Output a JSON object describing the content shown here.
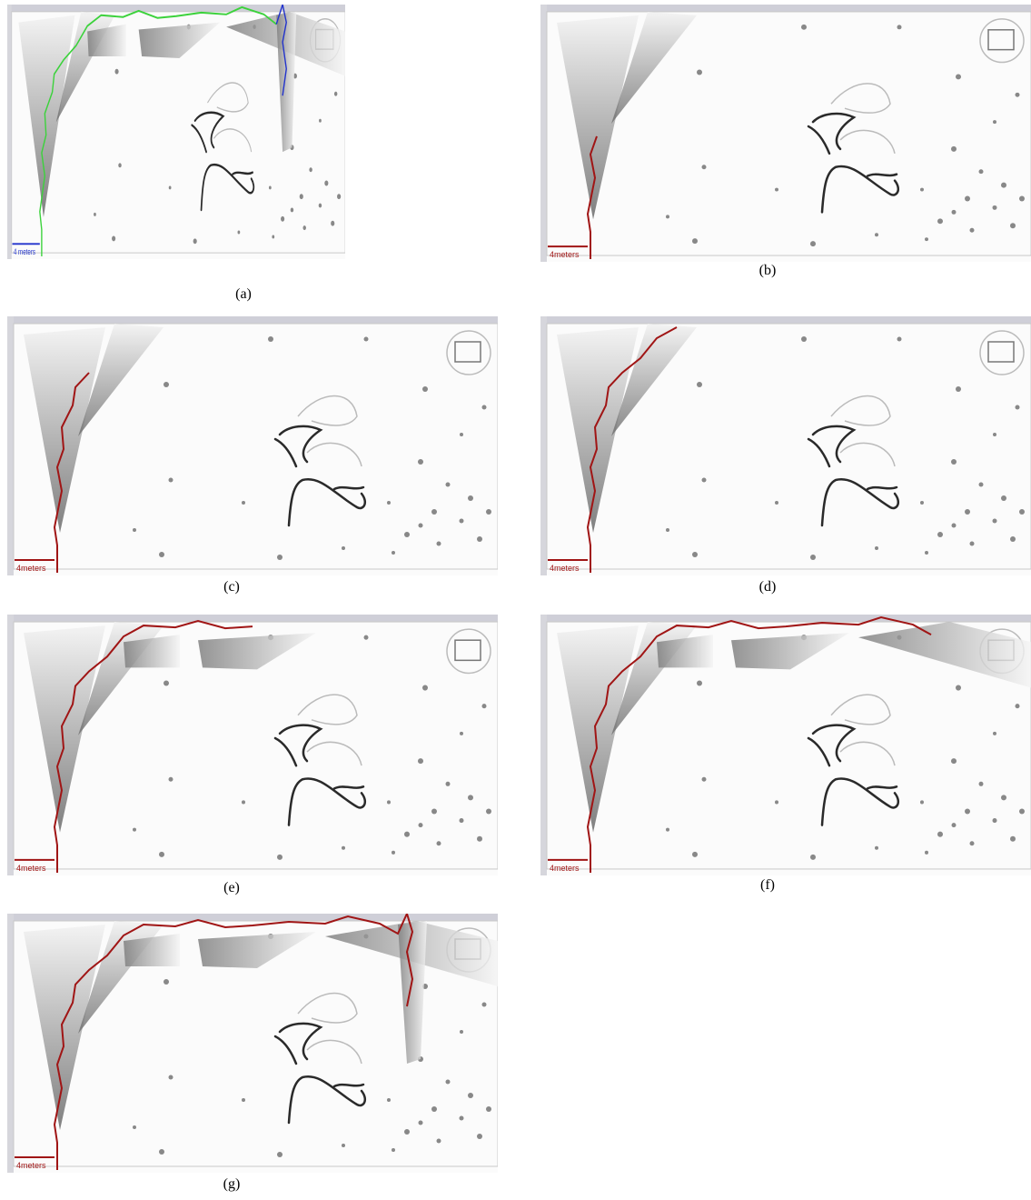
{
  "panels": [
    {
      "caption": "(a)",
      "scale_label": "4 meters"
    },
    {
      "caption": "(b)",
      "scale_label": "4meters"
    },
    {
      "caption": "(c)",
      "scale_label": "4meters"
    },
    {
      "caption": "(d)",
      "scale_label": "4meters"
    },
    {
      "caption": "(e)",
      "scale_label": "4meters"
    },
    {
      "caption": "(f)",
      "scale_label": "4meters"
    },
    {
      "caption": "(g)",
      "scale_label": "4meters"
    }
  ]
}
